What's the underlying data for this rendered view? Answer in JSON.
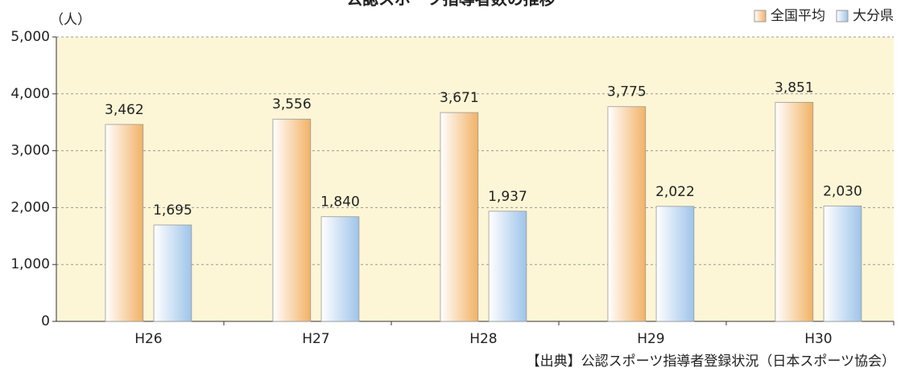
{
  "chart_data": {
    "type": "bar",
    "title": "公認スポーツ指導者数の推移",
    "y_unit": "（人）",
    "source": "【出典】公認スポーツ指導者登録状況（日本スポーツ協会）",
    "categories": [
      "H26",
      "H27",
      "H28",
      "H29",
      "H30"
    ],
    "series": [
      {
        "name": "全国平均",
        "color": "#f2b266",
        "values": [
          3462,
          3556,
          3671,
          3775,
          3851
        ],
        "value_labels": [
          "3,462",
          "3,556",
          "3,671",
          "3,775",
          "3,851"
        ]
      },
      {
        "name": "大分県",
        "color": "#9fc4ea",
        "values": [
          1695,
          1840,
          1937,
          2022,
          2030
        ],
        "value_labels": [
          "1,695",
          "1,840",
          "1,937",
          "2,022",
          "2,030"
        ]
      }
    ],
    "ylim": [
      0,
      5000
    ],
    "yticks": [
      0,
      {
        "value": 1000,
        "label": "1,000"
      },
      {
        "value": 2000,
        "label": "2,000"
      },
      {
        "value": 3000,
        "label": "3,000"
      },
      {
        "value": 4000,
        "label": "4,000"
      },
      {
        "value": 5000,
        "label": "5,000"
      }
    ],
    "grid": true,
    "legend": "top-right"
  }
}
